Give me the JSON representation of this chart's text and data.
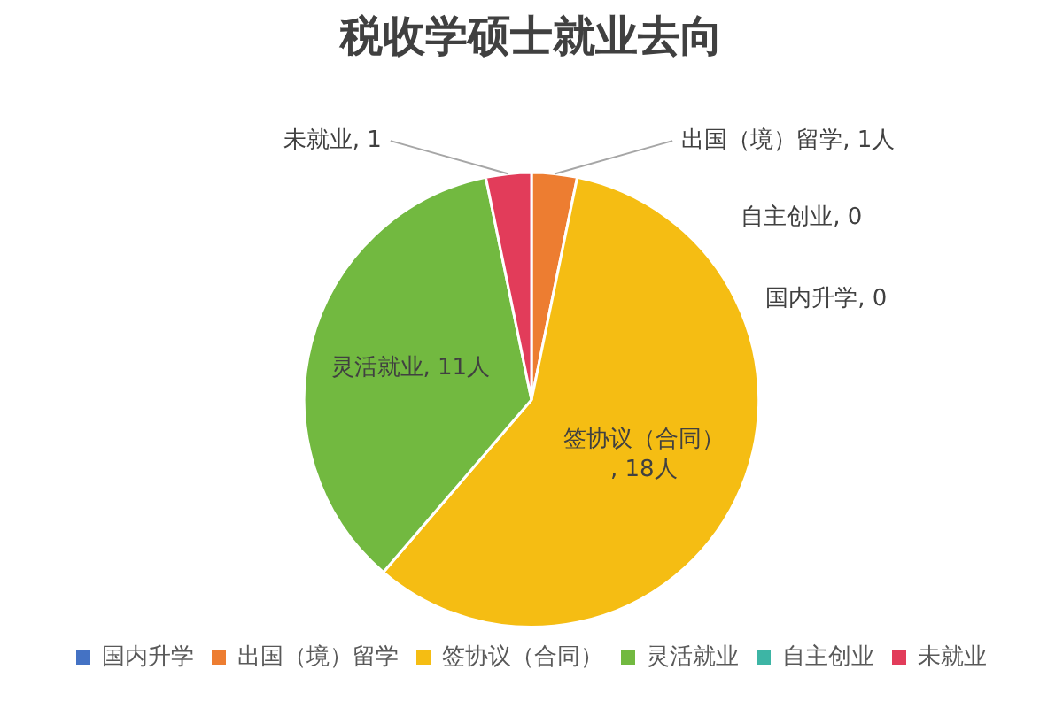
{
  "chart_data": {
    "type": "pie",
    "title": "税收学硕士就业去向",
    "categories": [
      "国内升学",
      "出国（境）留学",
      "签协议（合同）",
      "灵活就业",
      "自主创业",
      "未就业"
    ],
    "values": [
      0,
      1,
      18,
      11,
      0,
      1
    ],
    "colors": [
      "#4472c4",
      "#ed7d31",
      "#f5bd13",
      "#72b940",
      "#3db5a5",
      "#e23c5a"
    ],
    "value_labels": [
      "国内升学, 0",
      "出国（境）留学, 1人",
      "签协议（合同）, 18人",
      "灵活就业, 11人",
      "自主创业, 0",
      "未就业, 1"
    ],
    "legend": "bottom"
  }
}
